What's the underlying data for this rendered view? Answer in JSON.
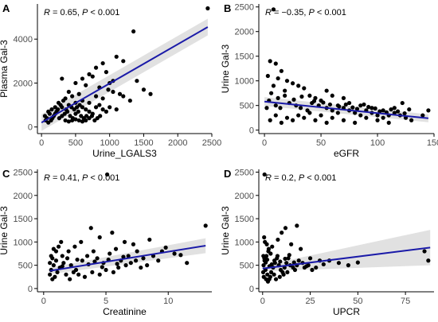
{
  "chart_data": [
    {
      "type": "scatter",
      "panel": "A",
      "xlabel": "Urine_LGALS3",
      "ylabel": "Plasma Gal-3",
      "xlim": [
        -60,
        2500
      ],
      "ylim": [
        -300,
        5600
      ],
      "xticks": [
        0,
        500,
        1000,
        1500,
        2000,
        2500
      ],
      "yticks": [
        0,
        2000,
        4000
      ],
      "annotation": {
        "r_label": "R",
        "r_value": " = 0.65, ",
        "p_label": "P",
        "p_value": " < 0.001"
      },
      "fit": {
        "x0": 0,
        "y0": 200,
        "x1": 2440,
        "y1": 4550,
        "ci0": 380,
        "ci1": 380
      },
      "points": [
        [
          2440,
          5400
        ],
        [
          1350,
          4350
        ],
        [
          1400,
          2100
        ],
        [
          1100,
          3200
        ],
        [
          1200,
          3000
        ],
        [
          900,
          2900
        ],
        [
          800,
          2700
        ],
        [
          700,
          2400
        ],
        [
          600,
          2200
        ],
        [
          1000,
          2000
        ],
        [
          850,
          1800
        ],
        [
          650,
          1900
        ],
        [
          750,
          2300
        ],
        [
          950,
          2500
        ],
        [
          1050,
          2100
        ],
        [
          300,
          2200
        ],
        [
          500,
          2000
        ],
        [
          400,
          1600
        ],
        [
          550,
          1500
        ],
        [
          450,
          1400
        ],
        [
          350,
          1300
        ],
        [
          600,
          1200
        ],
        [
          700,
          1100
        ],
        [
          800,
          1400
        ],
        [
          900,
          1300
        ],
        [
          250,
          1100
        ],
        [
          200,
          900
        ],
        [
          150,
          800
        ],
        [
          300,
          900
        ],
        [
          400,
          1000
        ],
        [
          500,
          1100
        ],
        [
          600,
          900
        ],
        [
          650,
          800
        ],
        [
          700,
          700
        ],
        [
          750,
          600
        ],
        [
          800,
          900
        ],
        [
          850,
          1000
        ],
        [
          900,
          800
        ],
        [
          950,
          700
        ],
        [
          1000,
          900
        ],
        [
          1100,
          800
        ],
        [
          100,
          700
        ],
        [
          50,
          500
        ],
        [
          80,
          400
        ],
        [
          120,
          600
        ],
        [
          180,
          500
        ],
        [
          220,
          700
        ],
        [
          260,
          400
        ],
        [
          300,
          500
        ],
        [
          340,
          600
        ],
        [
          380,
          700
        ],
        [
          420,
          500
        ],
        [
          460,
          400
        ],
        [
          500,
          600
        ],
        [
          540,
          700
        ],
        [
          580,
          500
        ],
        [
          620,
          400
        ],
        [
          660,
          500
        ],
        [
          700,
          400
        ],
        [
          740,
          500
        ],
        [
          780,
          300
        ],
        [
          820,
          400
        ],
        [
          860,
          500
        ],
        [
          440,
          900
        ],
        [
          480,
          800
        ],
        [
          520,
          900
        ],
        [
          560,
          1000
        ],
        [
          360,
          800
        ],
        [
          320,
          1200
        ],
        [
          280,
          1000
        ],
        [
          240,
          800
        ],
        [
          200,
          600
        ],
        [
          160,
          400
        ],
        [
          140,
          300
        ],
        [
          100,
          200
        ],
        [
          60,
          300
        ],
        [
          350,
          300
        ],
        [
          400,
          250
        ],
        [
          450,
          300
        ],
        [
          500,
          350
        ],
        [
          550,
          300
        ],
        [
          600,
          250
        ],
        [
          650,
          300
        ],
        [
          1200,
          1400
        ],
        [
          1300,
          1200
        ],
        [
          1150,
          1500
        ],
        [
          1500,
          1700
        ],
        [
          1600,
          1500
        ],
        [
          1050,
          1600
        ],
        [
          980,
          1700
        ]
      ]
    },
    {
      "type": "scatter",
      "panel": "B",
      "xlabel": "eGFR",
      "ylabel": "Urine Gal-3",
      "xlim": [
        -5,
        150
      ],
      "ylim": [
        -70,
        2560
      ],
      "xticks": [
        0,
        50,
        100,
        150
      ],
      "yticks": [
        0,
        500,
        1000,
        1500,
        2000,
        2500
      ],
      "annotation": {
        "r_label": "R",
        "r_value": " = −0.35, ",
        "p_label": "P",
        "p_value": " < 0.001"
      },
      "fit": {
        "x0": 0,
        "y0": 580,
        "x1": 145,
        "y1": 240,
        "ci0": 90,
        "ci1": 80
      },
      "points": [
        [
          8,
          2450
        ],
        [
          5,
          1400
        ],
        [
          10,
          1350
        ],
        [
          15,
          1200
        ],
        [
          3,
          1100
        ],
        [
          12,
          1050
        ],
        [
          20,
          1000
        ],
        [
          25,
          950
        ],
        [
          30,
          900
        ],
        [
          35,
          850
        ],
        [
          18,
          800
        ],
        [
          40,
          700
        ],
        [
          45,
          650
        ],
        [
          50,
          600
        ],
        [
          8,
          900
        ],
        [
          6,
          750
        ],
        [
          4,
          600
        ],
        [
          10,
          500
        ],
        [
          14,
          450
        ],
        [
          22,
          550
        ],
        [
          28,
          500
        ],
        [
          32,
          450
        ],
        [
          38,
          400
        ],
        [
          42,
          550
        ],
        [
          48,
          500
        ],
        [
          55,
          450
        ],
        [
          60,
          400
        ],
        [
          65,
          500
        ],
        [
          70,
          450
        ],
        [
          75,
          400
        ],
        [
          80,
          350
        ],
        [
          85,
          300
        ],
        [
          90,
          400
        ],
        [
          95,
          350
        ],
        [
          100,
          300
        ],
        [
          105,
          250
        ],
        [
          110,
          300
        ],
        [
          115,
          350
        ],
        [
          120,
          300
        ],
        [
          125,
          250
        ],
        [
          130,
          200
        ],
        [
          60,
          250
        ],
        [
          70,
          200
        ],
        [
          80,
          150
        ],
        [
          90,
          250
        ],
        [
          100,
          200
        ],
        [
          110,
          150
        ],
        [
          50,
          300
        ],
        [
          40,
          350
        ],
        [
          30,
          300
        ],
        [
          20,
          250
        ],
        [
          10,
          300
        ],
        [
          5,
          200
        ],
        [
          15,
          150
        ],
        [
          25,
          200
        ],
        [
          35,
          250
        ],
        [
          45,
          200
        ],
        [
          55,
          150
        ],
        [
          65,
          350
        ],
        [
          75,
          550
        ],
        [
          85,
          500
        ],
        [
          95,
          450
        ],
        [
          105,
          400
        ],
        [
          115,
          450
        ],
        [
          122,
          550
        ],
        [
          128,
          420
        ],
        [
          145,
          400
        ],
        [
          140,
          300
        ],
        [
          60,
          700
        ],
        [
          55,
          800
        ],
        [
          70,
          650
        ],
        [
          2,
          450
        ],
        [
          12,
          650
        ],
        [
          18,
          700
        ],
        [
          26,
          620
        ],
        [
          33,
          680
        ],
        [
          44,
          590
        ],
        [
          52,
          560
        ],
        [
          58,
          520
        ],
        [
          66,
          480
        ],
        [
          72,
          520
        ],
        [
          78,
          460
        ],
        [
          82,
          430
        ],
        [
          88,
          520
        ],
        [
          92,
          470
        ],
        [
          98,
          440
        ],
        [
          102,
          380
        ],
        [
          108,
          360
        ],
        [
          112,
          420
        ],
        [
          118,
          380
        ],
        [
          124,
          340
        ]
      ]
    },
    {
      "type": "scatter",
      "panel": "C",
      "xlabel": "Creatinine",
      "ylabel": "Urine Gal-3",
      "xlim": [
        -0.5,
        13.5
      ],
      "ylim": [
        -70,
        2560
      ],
      "xticks": [
        0,
        5,
        10
      ],
      "yticks": [
        0,
        500,
        1000,
        1500,
        2000,
        2500
      ],
      "annotation": {
        "r_label": "R",
        "r_value": " = 0.41, ",
        "p_label": "P",
        "p_value": " < 0.001"
      },
      "fit": {
        "x0": 0.5,
        "y0": 380,
        "x1": 13,
        "y1": 920,
        "ci0": 70,
        "ci1": 160
      },
      "points": [
        [
          5.1,
          2450
        ],
        [
          13,
          1350
        ],
        [
          3.8,
          1300
        ],
        [
          5.5,
          1200
        ],
        [
          8.5,
          1050
        ],
        [
          7.2,
          950
        ],
        [
          10.5,
          750
        ],
        [
          11.5,
          550
        ],
        [
          9.5,
          800
        ],
        [
          6.5,
          1000
        ],
        [
          4.5,
          1100
        ],
        [
          3,
          1000
        ],
        [
          2.5,
          900
        ],
        [
          2,
          800
        ],
        [
          1.5,
          700
        ],
        [
          1,
          600
        ],
        [
          0.8,
          500
        ],
        [
          0.6,
          400
        ],
        [
          0.5,
          300
        ],
        [
          0.7,
          200
        ],
        [
          0.9,
          250
        ],
        [
          1.1,
          350
        ],
        [
          1.3,
          450
        ],
        [
          1.6,
          550
        ],
        [
          1.9,
          650
        ],
        [
          2.2,
          500
        ],
        [
          2.6,
          400
        ],
        [
          3.1,
          600
        ],
        [
          3.5,
          700
        ],
        [
          4,
          800
        ],
        [
          4.3,
          650
        ],
        [
          4.8,
          550
        ],
        [
          5.3,
          750
        ],
        [
          5.8,
          850
        ],
        [
          6.2,
          600
        ],
        [
          6.8,
          700
        ],
        [
          7.5,
          800
        ],
        [
          8,
          650
        ],
        [
          8.8,
          700
        ],
        [
          9.2,
          600
        ],
        [
          1,
          800
        ],
        [
          1.2,
          900
        ],
        [
          1.4,
          1000
        ],
        [
          0.6,
          700
        ],
        [
          0.8,
          850
        ],
        [
          2.8,
          300
        ],
        [
          3.3,
          250
        ],
        [
          3.9,
          350
        ],
        [
          4.5,
          300
        ],
        [
          5,
          400
        ],
        [
          5.6,
          350
        ],
        [
          6,
          450
        ],
        [
          6.6,
          500
        ],
        [
          7,
          550
        ],
        [
          7.8,
          450
        ],
        [
          8.3,
          500
        ],
        [
          1.8,
          300
        ],
        [
          2.1,
          200
        ],
        [
          2.4,
          350
        ],
        [
          0.5,
          550
        ],
        [
          0.7,
          650
        ],
        [
          1.5,
          480
        ],
        [
          2.7,
          620
        ],
        [
          3.6,
          520
        ],
        [
          4.1,
          580
        ],
        [
          4.7,
          460
        ],
        [
          5.2,
          620
        ],
        [
          5.9,
          530
        ],
        [
          6.4,
          680
        ],
        [
          7.4,
          600
        ],
        [
          9.8,
          880
        ],
        [
          11,
          720
        ]
      ]
    },
    {
      "type": "scatter",
      "panel": "D",
      "xlabel": "UPCR",
      "ylabel": "Urine Gal-3",
      "xlim": [
        -2,
        90
      ],
      "ylim": [
        -70,
        2560
      ],
      "xticks": [
        0,
        25,
        50,
        75
      ],
      "yticks": [
        0,
        500,
        1000,
        1500,
        2000,
        2500
      ],
      "annotation": {
        "r_label": "R",
        "r_value": " = 0.2, ",
        "p_label": "P",
        "p_value": " < 0.001"
      },
      "fit": {
        "x0": 0,
        "y0": 430,
        "x1": 88,
        "y1": 880,
        "ci0": 60,
        "ci1": 380
      },
      "points": [
        [
          1,
          2450
        ],
        [
          18,
          1350
        ],
        [
          12,
          1300
        ],
        [
          10,
          1200
        ],
        [
          8,
          1050
        ],
        [
          15,
          950
        ],
        [
          20,
          850
        ],
        [
          25,
          650
        ],
        [
          30,
          600
        ],
        [
          45,
          500
        ],
        [
          85,
          800
        ],
        [
          87,
          600
        ],
        [
          40,
          550
        ],
        [
          35,
          600
        ],
        [
          5,
          900
        ],
        [
          3,
          800
        ],
        [
          2,
          700
        ],
        [
          1,
          600
        ],
        [
          0.5,
          500
        ],
        [
          1.5,
          400
        ],
        [
          2.5,
          300
        ],
        [
          3.5,
          200
        ],
        [
          4.5,
          350
        ],
        [
          5.5,
          450
        ],
        [
          6.5,
          550
        ],
        [
          7.5,
          650
        ],
        [
          8.5,
          500
        ],
        [
          9.5,
          400
        ],
        [
          10.5,
          350
        ],
        [
          11.5,
          450
        ],
        [
          12.5,
          550
        ],
        [
          13.5,
          650
        ],
        [
          14.5,
          500
        ],
        [
          16,
          450
        ],
        [
          17,
          400
        ],
        [
          18,
          500
        ],
        [
          19,
          600
        ],
        [
          21,
          550
        ],
        [
          22,
          450
        ],
        [
          24,
          500
        ],
        [
          26,
          400
        ],
        [
          28,
          450
        ],
        [
          0.8,
          1100
        ],
        [
          1.2,
          1000
        ],
        [
          2.2,
          950
        ],
        [
          3.2,
          850
        ],
        [
          4.2,
          750
        ],
        [
          0.3,
          350
        ],
        [
          0.6,
          250
        ],
        [
          1.8,
          200
        ],
        [
          2.8,
          150
        ],
        [
          4,
          250
        ],
        [
          6,
          300
        ],
        [
          7,
          200
        ],
        [
          9,
          250
        ],
        [
          11,
          300
        ],
        [
          13,
          350
        ],
        [
          0.4,
          700
        ],
        [
          0.9,
          650
        ],
        [
          1.6,
          560
        ],
        [
          2.4,
          620
        ],
        [
          3.6,
          480
        ],
        [
          4.8,
          520
        ],
        [
          6.2,
          600
        ],
        [
          7.8,
          700
        ],
        [
          9.2,
          580
        ],
        [
          11.8,
          640
        ],
        [
          14,
          720
        ],
        [
          16.5,
          560
        ],
        [
          23,
          480
        ],
        [
          32,
          520
        ],
        [
          50,
          560
        ]
      ]
    }
  ]
}
